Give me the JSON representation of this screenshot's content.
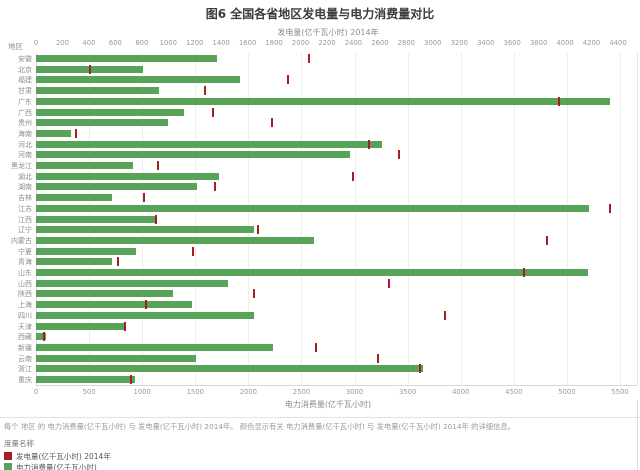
{
  "chart_data": {
    "type": "bar",
    "orientation": "horizontal",
    "title": "图6  全国各省地区发电量与电力消费量对比",
    "region_axis_title": "地区",
    "top_axis": {
      "label": "发电量(亿千瓦小时) 2014年",
      "min": 0,
      "max": 4400,
      "step": 200
    },
    "bottom_axis": {
      "label": "电力消费量(亿千瓦小时)",
      "min": 0,
      "max": 5500,
      "step": 500
    },
    "grid": true,
    "legend_position": "bottom-left",
    "legend_title": "度量名称",
    "categories": [
      "安徽",
      "北京",
      "福建",
      "甘肃",
      "广东",
      "广西",
      "贵州",
      "海南",
      "河北",
      "河南",
      "黑龙江",
      "湖北",
      "湖南",
      "吉林",
      "江苏",
      "江西",
      "辽宁",
      "内蒙古",
      "宁夏",
      "青海",
      "山东",
      "山西",
      "陕西",
      "上海",
      "四川",
      "天津",
      "西藏",
      "新疆",
      "云南",
      "浙江",
      "重庆"
    ],
    "series": [
      {
        "name": "发电量(亿千瓦小时) 2014年",
        "mark": "tick",
        "axis": "top",
        "color": "#a61e23",
        "values": [
          2065,
          410,
          1905,
          1280,
          3955,
          1340,
          1785,
          300,
          2520,
          2745,
          925,
          2400,
          1350,
          820,
          4340,
          910,
          1680,
          3860,
          1190,
          620,
          3690,
          2665,
          1650,
          830,
          3095,
          670,
          60,
          2120,
          2585,
          2905,
          720
        ]
      },
      {
        "name": "电力消费量(亿千瓦小时)",
        "mark": "bar",
        "axis": "bottom",
        "color": "#57a459",
        "values": [
          1705,
          1010,
          1920,
          1160,
          5405,
          1395,
          1245,
          330,
          3255,
          2955,
          915,
          1725,
          1515,
          720,
          5210,
          1130,
          2055,
          2620,
          940,
          720,
          5200,
          1810,
          1290,
          1465,
          2055,
          830,
          95,
          2230,
          1505,
          3640,
          930
        ]
      }
    ],
    "caption": "每个 地区 的 电力消费量(亿千瓦小时) 与 发电量(亿千瓦小时) 2014年。  颜色显示有关 电力消费量(亿千瓦小时) 与 发电量(亿千瓦小时) 2014年 的详细信息。"
  }
}
